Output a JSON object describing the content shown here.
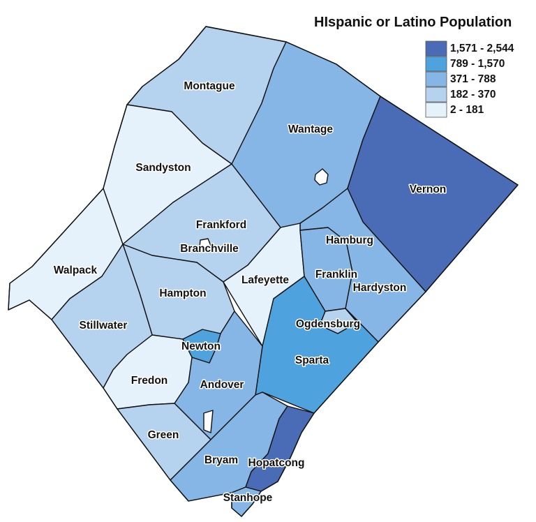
{
  "legend": {
    "title": "HIspanic or Latino Population",
    "classes": [
      {
        "label": "1,571 - 2,544",
        "color": "#4a6bb5"
      },
      {
        "label": "789 - 1,570",
        "color": "#4ea3de"
      },
      {
        "label": "371 - 788",
        "color": "#85b6e5"
      },
      {
        "label": "182 - 370",
        "color": "#b5d2ef"
      },
      {
        "label": "2 - 181",
        "color": "#e6f2fb"
      }
    ]
  },
  "municipalities": [
    {
      "name": "Montague",
      "class": 3
    },
    {
      "name": "Wantage",
      "class": 2
    },
    {
      "name": "Vernon",
      "class": 0
    },
    {
      "name": "Sandyston",
      "class": 4
    },
    {
      "name": "Frankford",
      "class": 3
    },
    {
      "name": "Branchville",
      "class": 4
    },
    {
      "name": "Walpack",
      "class": 4
    },
    {
      "name": "Hamburg",
      "class": 3
    },
    {
      "name": "Franklin",
      "class": 2
    },
    {
      "name": "Hardyston",
      "class": 2
    },
    {
      "name": "Lafeyette",
      "class": 4
    },
    {
      "name": "Hampton",
      "class": 3
    },
    {
      "name": "Stillwater",
      "class": 3
    },
    {
      "name": "Ogdensburg",
      "class": 3
    },
    {
      "name": "Newton",
      "class": 1
    },
    {
      "name": "Sparta",
      "class": 1
    },
    {
      "name": "Fredon",
      "class": 4
    },
    {
      "name": "Andover",
      "class": 2
    },
    {
      "name": "Green",
      "class": 3
    },
    {
      "name": "Bryam",
      "class": 2
    },
    {
      "name": "Hopatcong",
      "class": 0
    },
    {
      "name": "Stanhope",
      "class": 2
    }
  ]
}
